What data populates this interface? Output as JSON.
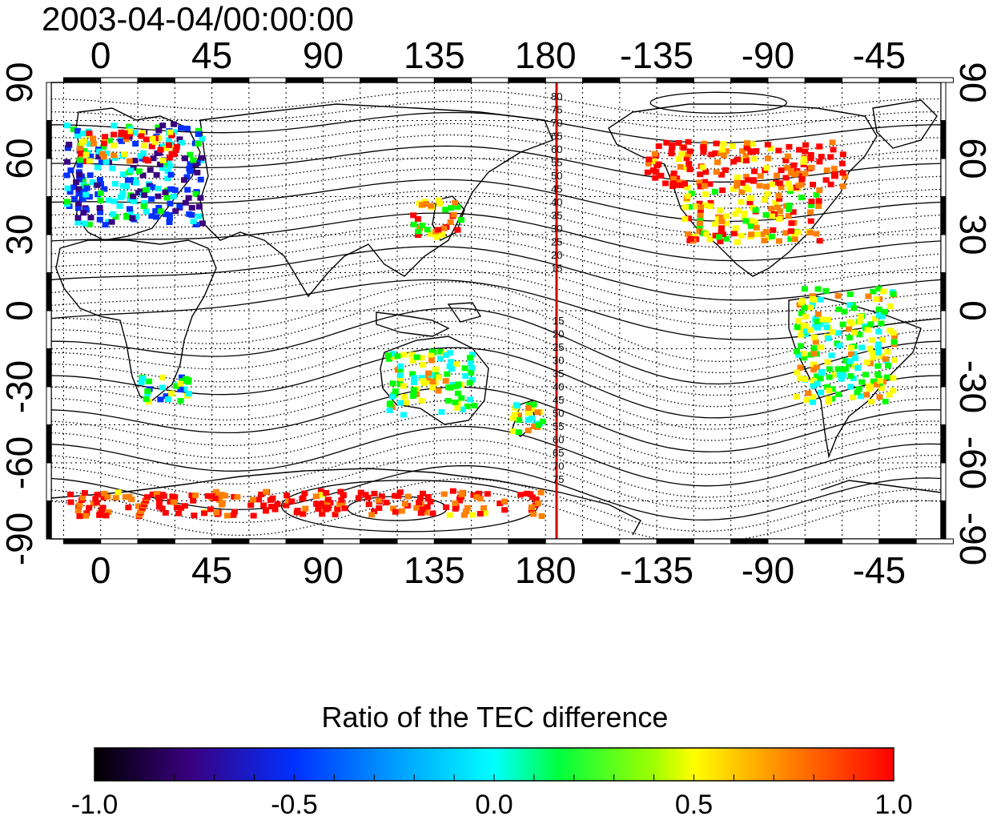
{
  "title": "2003-04-04/00:00:00",
  "colorbar": {
    "title": "Ratio of the TEC difference",
    "min": -1.0,
    "max": 1.0,
    "tick_labels": [
      "-1.0",
      "-0.5",
      "0.0",
      "0.5",
      "1.0"
    ],
    "colors": [
      "#000000",
      "#3a0080",
      "#0030ff",
      "#00ffff",
      "#00ff00",
      "#ffff00",
      "#ff8000",
      "#ff0000"
    ]
  },
  "axes": {
    "top_labels": [
      "0",
      "45",
      "90",
      "135",
      "180",
      "-135",
      "-90",
      "-45"
    ],
    "bottom_labels": [
      "0",
      "45",
      "90",
      "135",
      "180",
      "-135",
      "-90",
      "-45"
    ],
    "left_labels": [
      "90",
      "60",
      "30",
      "0",
      "-30",
      "-60",
      "-90"
    ],
    "right_labels": [
      "90",
      "60",
      "30",
      "0",
      "-30",
      "-60",
      "-90"
    ],
    "lon_range": [
      -20,
      340
    ],
    "lat_range": [
      -90,
      90
    ],
    "grid": true
  },
  "meridian_line": {
    "longitude": 180,
    "color": "#cc0000"
  },
  "contour_labels_north": [
    "80",
    "75",
    "70",
    "65",
    "60",
    "55",
    "50",
    "45",
    "40",
    "35",
    "30",
    "25",
    "20",
    "15"
  ],
  "contour_labels_south": [
    "15",
    "20",
    "25",
    "30",
    "35",
    "40",
    "45",
    "50",
    "55",
    "60",
    "65",
    "70",
    "75"
  ],
  "data_patches": [
    {
      "region": "Europe",
      "lon": [
        -15,
        40
      ],
      "lat": [
        35,
        75
      ],
      "value": -0.3
    },
    {
      "region": "North Europe",
      "lon": [
        -10,
        30
      ],
      "lat": [
        60,
        72
      ],
      "value": 0.8
    },
    {
      "region": "Japan",
      "lon": [
        125,
        145
      ],
      "lat": [
        30,
        45
      ],
      "value": 0.6
    },
    {
      "region": "North America",
      "lon": [
        235,
        290
      ],
      "lat": [
        28,
        50
      ],
      "value": 0.6
    },
    {
      "region": "Canada",
      "lon": [
        220,
        300
      ],
      "lat": [
        50,
        68
      ],
      "value": 0.9
    },
    {
      "region": "Southern Africa",
      "lon": [
        15,
        35
      ],
      "lat": [
        -35,
        -25
      ],
      "value": 0.1
    },
    {
      "region": "Australia",
      "lon": [
        115,
        150
      ],
      "lat": [
        -40,
        -15
      ],
      "value": 0.2
    },
    {
      "region": "New Zealand",
      "lon": [
        165,
        178
      ],
      "lat": [
        -47,
        -35
      ],
      "value": 0.3
    },
    {
      "region": "Antarctica",
      "lon": [
        -15,
        180
      ],
      "lat": [
        -80,
        -70
      ],
      "value": 1.0
    },
    {
      "region": "South America",
      "lon": [
        280,
        320
      ],
      "lat": [
        -35,
        10
      ],
      "value": 0.2
    }
  ]
}
